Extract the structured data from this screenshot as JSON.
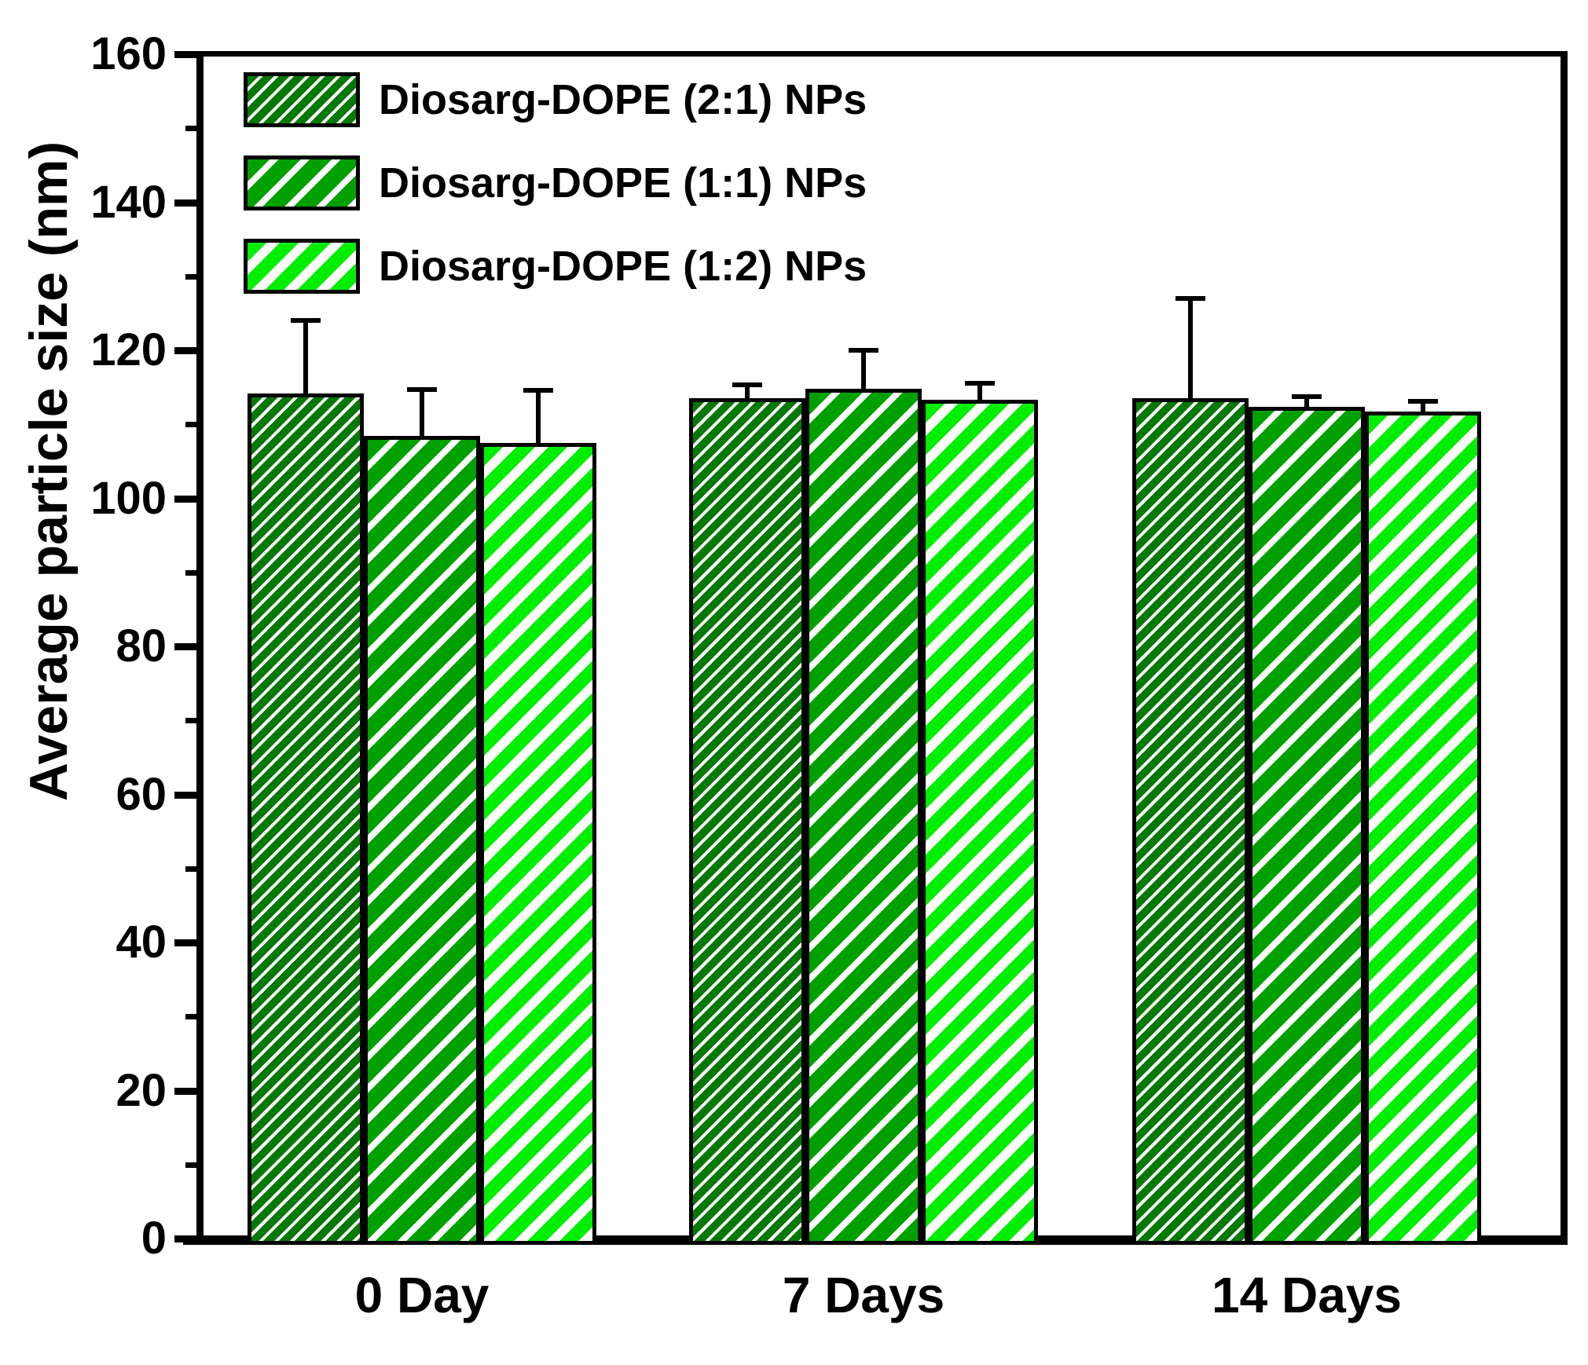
{
  "colors": {
    "background": "#ffffff",
    "axis": "#000000",
    "error_bar": "#000000",
    "hatch_stripe": "#ffffff"
  },
  "chart_data": {
    "type": "bar",
    "title": "",
    "xlabel": "",
    "ylabel": "Average particle size (nm)",
    "ylim": [
      0,
      160
    ],
    "y_major_tick_step": 20,
    "y_minor_tick_step": 10,
    "y_tick_labels": [
      "0",
      "20",
      "40",
      "60",
      "80",
      "100",
      "120",
      "140",
      "160"
    ],
    "grid": false,
    "legend_position": "top-left-inside",
    "categories": [
      "0 Day",
      "7 Days",
      "14 Days"
    ],
    "series": [
      {
        "name": "Diosarg-DOPE (2:1) NPs",
        "values": [
          114.2,
          113.5,
          113.5
        ],
        "errors_plus": [
          9.8,
          1.8,
          13.5
        ],
        "color": "#067806",
        "hatch": "thin"
      },
      {
        "name": "Diosarg-DOPE (1:1) NPs",
        "values": [
          108.4,
          114.8,
          112.4
        ],
        "errors_plus": [
          6.3,
          5.2,
          1.3
        ],
        "color": "#00a000",
        "hatch": "medium"
      },
      {
        "name": "Diosarg-DOPE (1:2) NPs",
        "values": [
          107.5,
          113.3,
          111.7
        ],
        "errors_plus": [
          7.1,
          2.2,
          1.4
        ],
        "color": "#00ee00",
        "hatch": "wide"
      }
    ]
  }
}
